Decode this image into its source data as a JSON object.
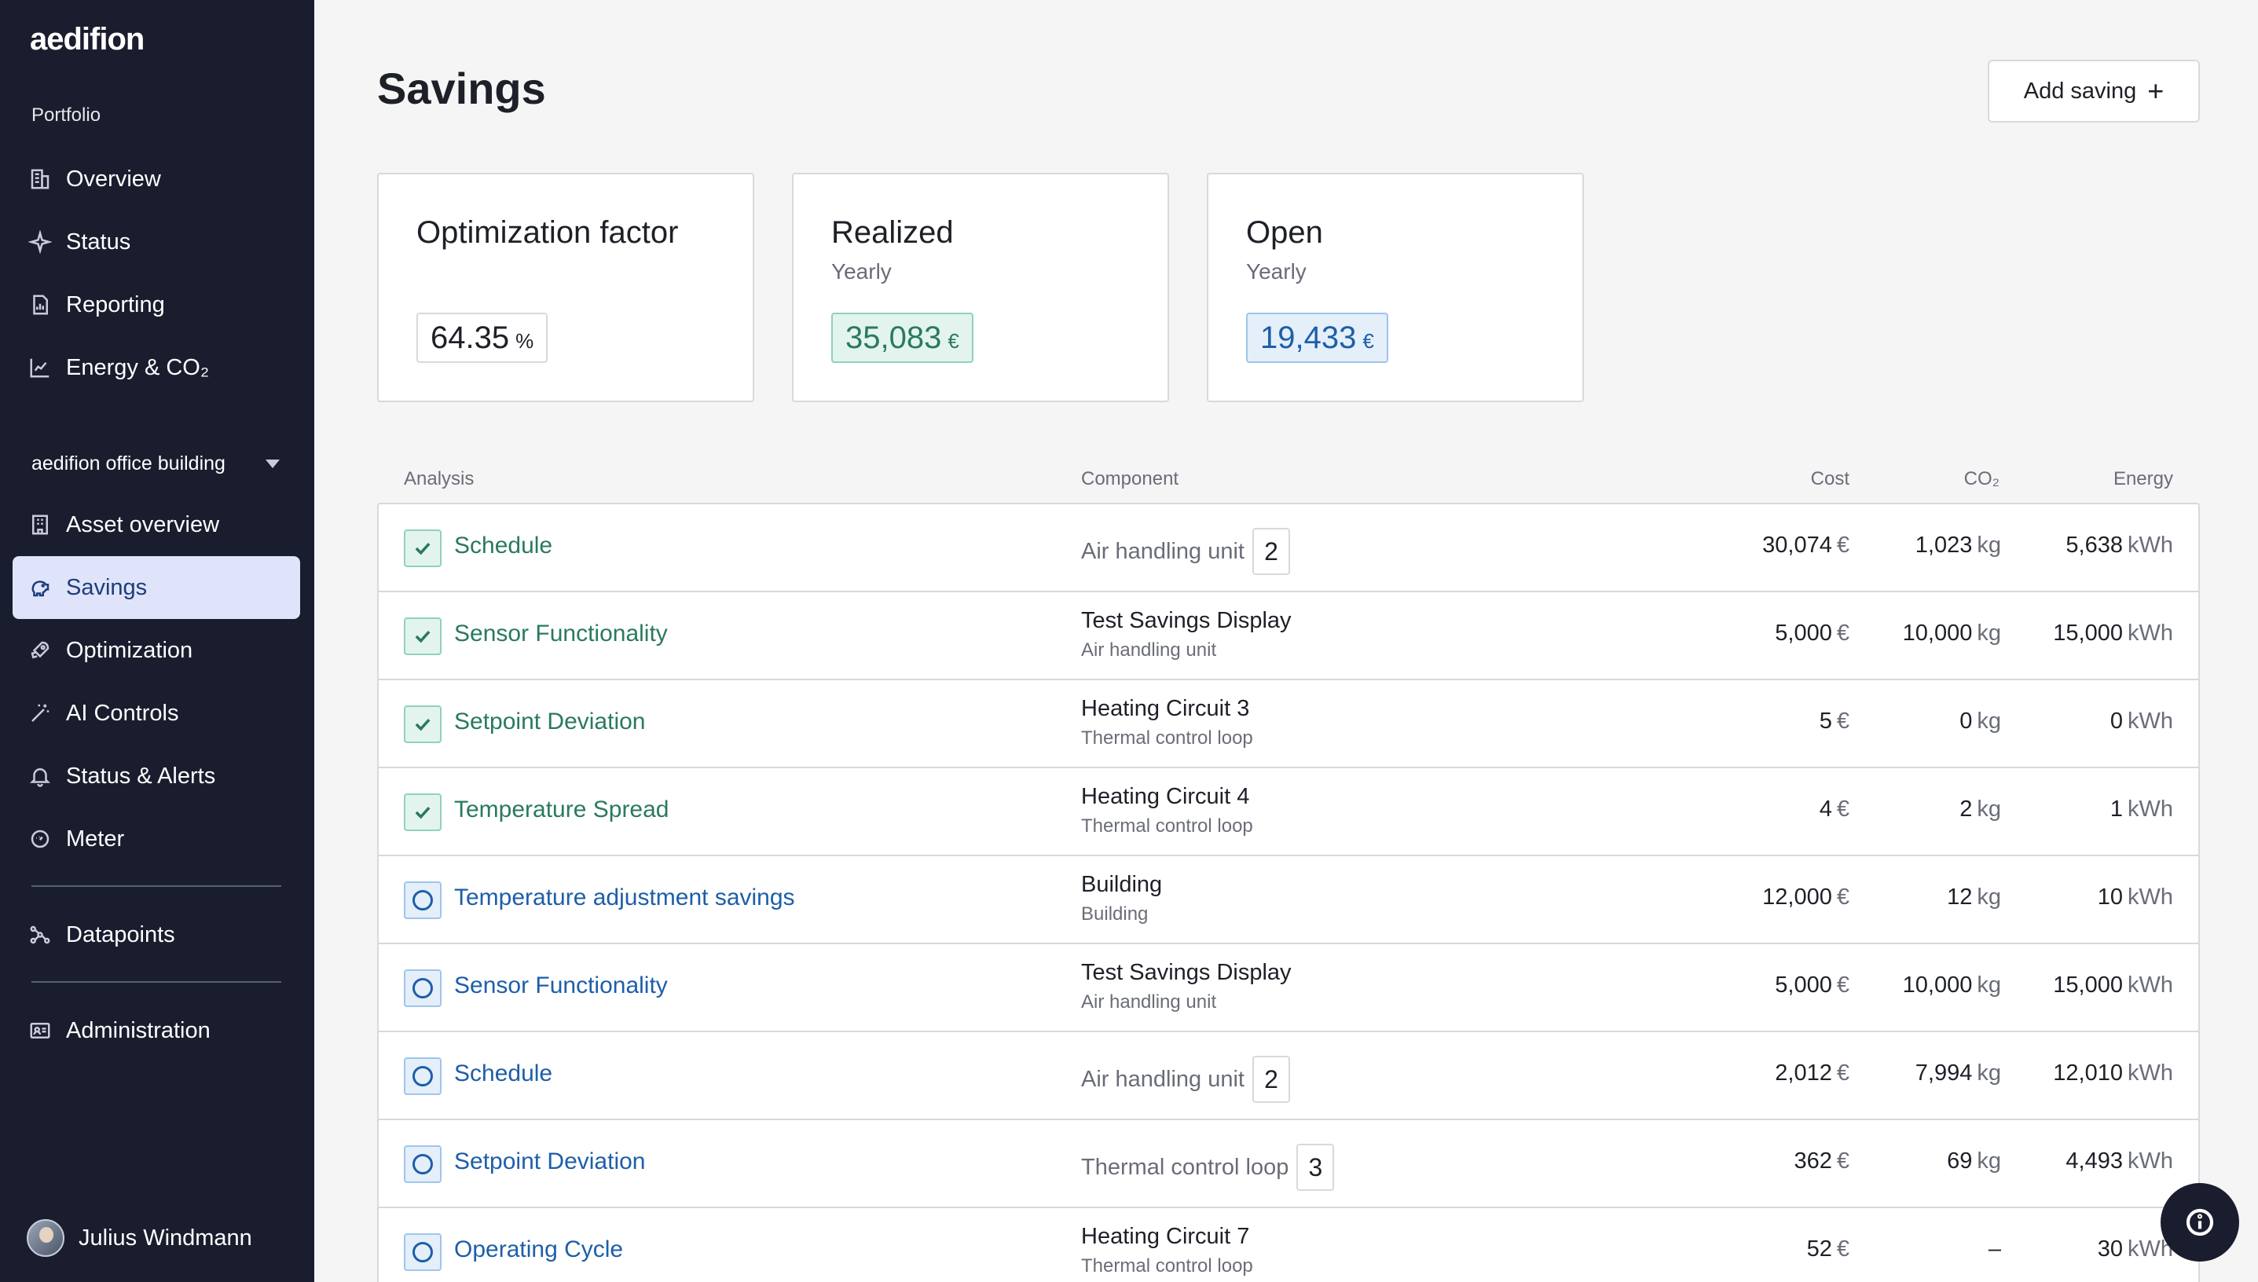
{
  "app": {
    "logo": "aedifion"
  },
  "sidebar": {
    "portfolio_label": "Portfolio",
    "portfolio_items": [
      {
        "label": "Overview",
        "icon": "building-icon"
      },
      {
        "label": "Status",
        "icon": "sparkle-icon"
      },
      {
        "label": "Reporting",
        "icon": "report-icon"
      },
      {
        "label": "Energy & CO₂",
        "icon": "chart-icon"
      }
    ],
    "building_label": "aedifion office building",
    "building_items": [
      {
        "label": "Asset overview",
        "icon": "asset-icon"
      },
      {
        "label": "Savings",
        "icon": "piggy-bank-icon",
        "active": true
      },
      {
        "label": "Optimization",
        "icon": "rocket-icon"
      },
      {
        "label": "AI Controls",
        "icon": "magic-wand-icon"
      },
      {
        "label": "Status & Alerts",
        "icon": "bell-icon"
      },
      {
        "label": "Meter",
        "icon": "meter-icon"
      }
    ],
    "datapoints_label": "Datapoints",
    "administration_label": "Administration",
    "user_name": "Julius Windmann"
  },
  "header": {
    "title": "Savings",
    "add_button_label": "Add saving"
  },
  "cards": {
    "optimization": {
      "title": "Optimization factor",
      "value": "64.35",
      "unit": "%"
    },
    "realized": {
      "title": "Realized",
      "subtitle": "Yearly",
      "value": "35,083",
      "unit": "€"
    },
    "open": {
      "title": "Open",
      "subtitle": "Yearly",
      "value": "19,433",
      "unit": "€"
    }
  },
  "table": {
    "headers": {
      "analysis": "Analysis",
      "component": "Component",
      "cost": "Cost",
      "co2": "CO₂",
      "energy": "Energy"
    },
    "units": {
      "cost": "€",
      "co2": "kg",
      "energy": "kWh"
    },
    "rows": [
      {
        "status": "done",
        "analysis": "Schedule",
        "component": "Air handling unit",
        "component_sub": "",
        "count": "2",
        "cost": "30,074",
        "co2": "1,023",
        "energy": "5,638"
      },
      {
        "status": "done",
        "analysis": "Sensor Functionality",
        "component": "Test Savings Display",
        "component_sub": "Air handling unit",
        "count": "",
        "cost": "5,000",
        "co2": "10,000",
        "energy": "15,000"
      },
      {
        "status": "done",
        "analysis": "Setpoint Deviation",
        "component": "Heating Circuit 3",
        "component_sub": "Thermal control loop",
        "count": "",
        "cost": "5",
        "co2": "0",
        "energy": "0"
      },
      {
        "status": "done",
        "analysis": "Temperature Spread",
        "component": "Heating Circuit 4",
        "component_sub": "Thermal control loop",
        "count": "",
        "cost": "4",
        "co2": "2",
        "energy": "1"
      },
      {
        "status": "open",
        "analysis": "Temperature adjustment savings",
        "component": "Building",
        "component_sub": "Building",
        "count": "",
        "cost": "12,000",
        "co2": "12",
        "energy": "10"
      },
      {
        "status": "open",
        "analysis": "Sensor Functionality",
        "component": "Test Savings Display",
        "component_sub": "Air handling unit",
        "count": "",
        "cost": "5,000",
        "co2": "10,000",
        "energy": "15,000"
      },
      {
        "status": "open",
        "analysis": "Schedule",
        "component": "Air handling unit",
        "component_sub": "",
        "count": "2",
        "cost": "2,012",
        "co2": "7,994",
        "energy": "12,010"
      },
      {
        "status": "open",
        "analysis": "Setpoint Deviation",
        "component": "Thermal control loop",
        "component_sub": "",
        "count": "3",
        "cost": "362",
        "co2": "69",
        "energy": "4,493"
      },
      {
        "status": "open",
        "analysis": "Operating Cycle",
        "component": "Heating Circuit 7",
        "component_sub": "Thermal control loop",
        "count": "",
        "cost": "52",
        "co2": "–",
        "co2_no_unit": true,
        "energy": "30"
      }
    ]
  },
  "colors": {
    "sidebar_bg": "#191d2e",
    "active_bg": "#dfe4fa",
    "realized_green": "#2a7a5c",
    "open_blue": "#1e5ea8"
  }
}
